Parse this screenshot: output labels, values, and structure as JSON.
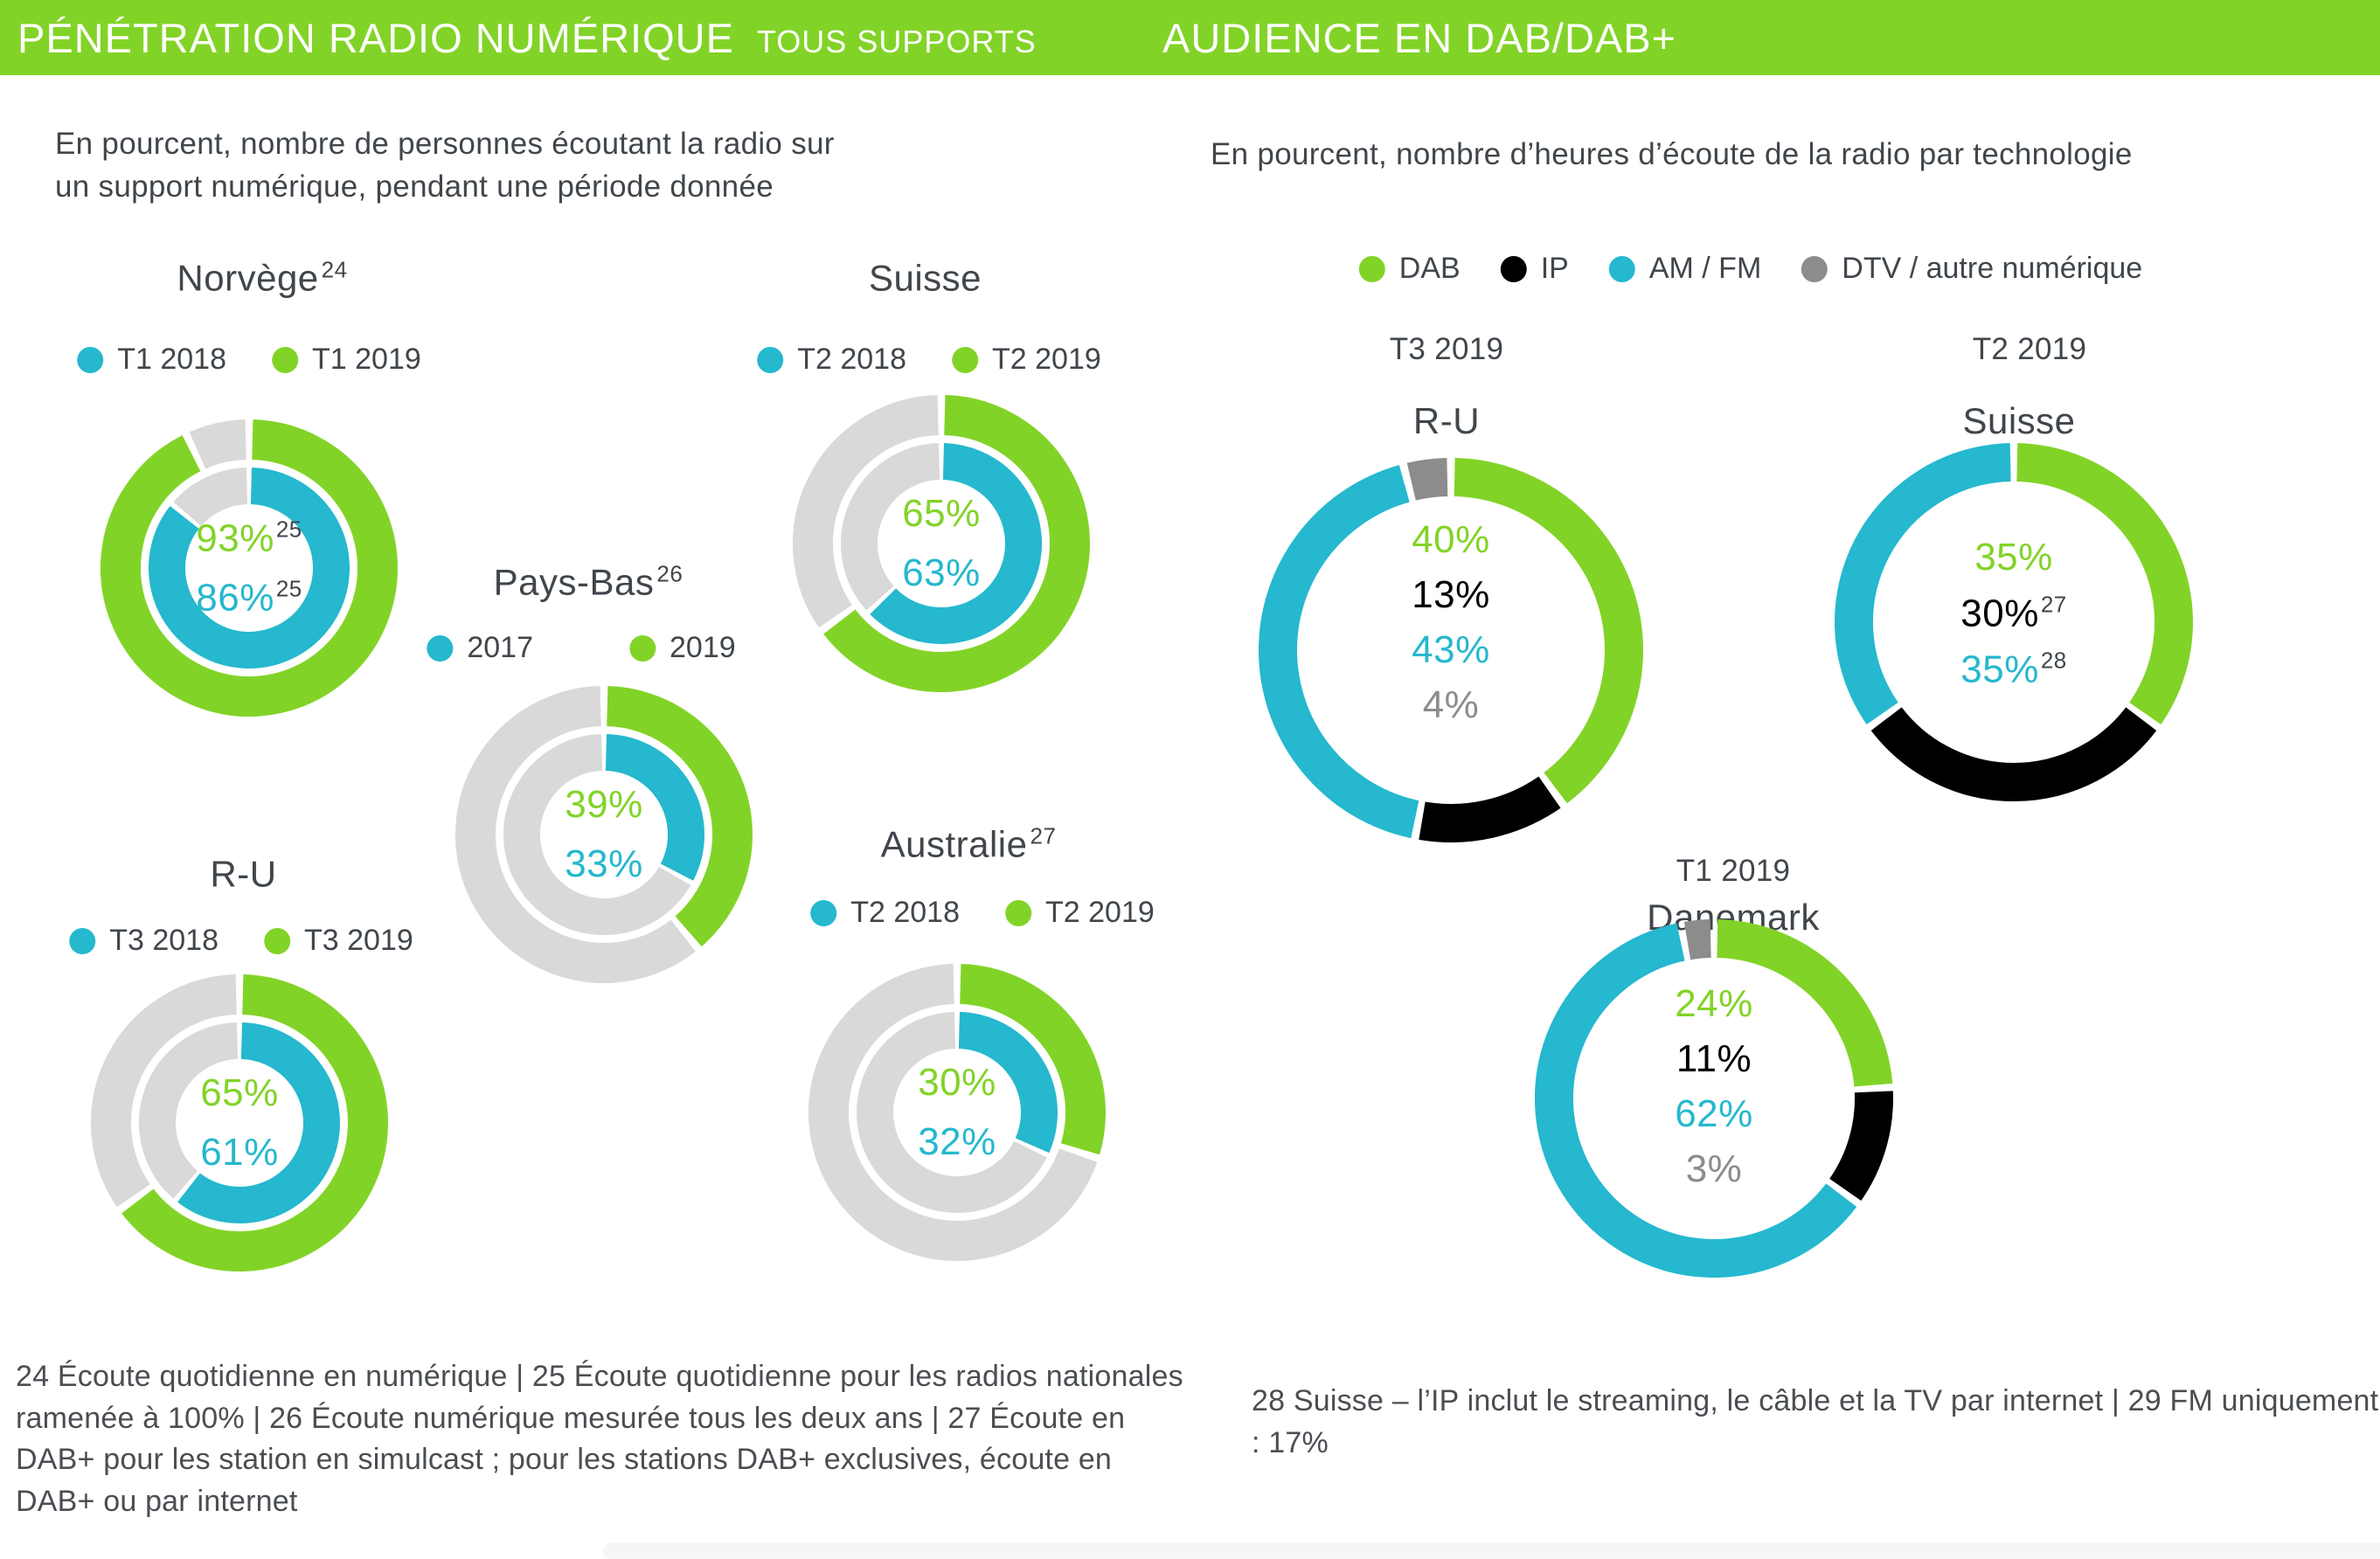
{
  "header": {
    "left_title": "PÉNÉTRATION RADIO NUMÉRIQUE",
    "left_title_suffix": "TOUS SUPPORTS",
    "right_title": "AUDIENCE EN DAB/DAB+"
  },
  "left_panel": {
    "description": "En pourcent, nombre de personnes écoutant la radio sur un support numérique, pendant une période donnée",
    "description_line1": "En pourcent, nombre de personnes écoutant la radio sur",
    "description_line2": "un support numérique, pendant une période donnée",
    "footnote": "24 Écoute quotidienne en numérique | 25 Écoute quotidienne pour les radios nationales ramenée à 100% | 26 Écoute numérique mesurée tous les deux ans | 27 Écoute en DAB+ pour les station en simulcast ; pour les stations DAB+ exclusives, écoute en DAB+ ou par internet"
  },
  "right_panel": {
    "description": "En pourcent, nombre d’heures d’écoute de la radio par technologie",
    "legend": [
      {
        "label": "DAB",
        "color": "green"
      },
      {
        "label": "IP",
        "color": "black"
      },
      {
        "label": "AM / FM",
        "color": "teal"
      },
      {
        "label": "DTV / autre numérique",
        "color": "gray"
      }
    ],
    "footnote": "28 Suisse – l’IP inclut le streaming, le câble et la TV par internet | 29 FM uniquement : 17%"
  },
  "colors": {
    "green": "#82D327",
    "teal": "#25B8CE",
    "black": "#000000",
    "gray": "#8C8C8C",
    "lightgray": "#D9D9D9",
    "dark_text": "#40464B"
  },
  "chart_data": [
    {
      "id": "norvege",
      "type": "donut",
      "unit": "%",
      "panel": "left",
      "title": "Norvège",
      "title_sup": "24",
      "legend": [
        {
          "label": "T1 2018",
          "color": "teal"
        },
        {
          "label": "T1 2019",
          "color": "green"
        }
      ],
      "rings": [
        {
          "ring": "outer",
          "period": "T1 2019",
          "value": 93,
          "color": "green",
          "remainder_color": "lightgray"
        },
        {
          "ring": "inner",
          "period": "T1 2018",
          "value": 86,
          "color": "teal",
          "remainder_color": "lightgray"
        }
      ],
      "center_labels": [
        {
          "text": "93%",
          "sup": "25",
          "color": "green"
        },
        {
          "text": "86%",
          "sup": "25",
          "color": "teal"
        }
      ]
    },
    {
      "id": "suisse_gauche",
      "type": "donut",
      "unit": "%",
      "panel": "left",
      "title": "Suisse",
      "legend": [
        {
          "label": "T2 2018",
          "color": "teal"
        },
        {
          "label": "T2 2019",
          "color": "green"
        }
      ],
      "rings": [
        {
          "ring": "outer",
          "period": "T2 2019",
          "value": 65,
          "color": "green",
          "remainder_color": "lightgray"
        },
        {
          "ring": "inner",
          "period": "T2 2018",
          "value": 63,
          "color": "teal",
          "remainder_color": "lightgray"
        }
      ],
      "center_labels": [
        {
          "text": "65%",
          "color": "green"
        },
        {
          "text": "63%",
          "color": "teal"
        }
      ]
    },
    {
      "id": "pays_bas",
      "type": "donut",
      "unit": "%",
      "panel": "left",
      "title": "Pays-Bas",
      "title_sup": "26",
      "legend": [
        {
          "label": "2017",
          "color": "teal"
        },
        {
          "label": "2019",
          "color": "green"
        }
      ],
      "rings": [
        {
          "ring": "outer",
          "period": "2019",
          "value": 39,
          "color": "green",
          "remainder_color": "lightgray"
        },
        {
          "ring": "inner",
          "period": "2017",
          "value": 33,
          "color": "teal",
          "remainder_color": "lightgray"
        }
      ],
      "center_labels": [
        {
          "text": "39%",
          "color": "green"
        },
        {
          "text": "33%",
          "color": "teal"
        }
      ]
    },
    {
      "id": "ru_gauche",
      "type": "donut",
      "unit": "%",
      "panel": "left",
      "title": "R-U",
      "legend": [
        {
          "label": "T3 2018",
          "color": "teal"
        },
        {
          "label": "T3 2019",
          "color": "green"
        }
      ],
      "rings": [
        {
          "ring": "outer",
          "period": "T3 2019",
          "value": 65,
          "color": "green",
          "remainder_color": "lightgray"
        },
        {
          "ring": "inner",
          "period": "T3 2018",
          "value": 61,
          "color": "teal",
          "remainder_color": "lightgray"
        }
      ],
      "center_labels": [
        {
          "text": "65%",
          "color": "green"
        },
        {
          "text": "61%",
          "color": "teal"
        }
      ]
    },
    {
      "id": "australie",
      "type": "donut",
      "unit": "%",
      "panel": "left",
      "title": "Australie",
      "title_sup": "27",
      "legend": [
        {
          "label": "T2 2018",
          "color": "teal"
        },
        {
          "label": "T2 2019",
          "color": "green"
        }
      ],
      "rings": [
        {
          "ring": "outer",
          "period": "T2 2019",
          "value": 30,
          "color": "green",
          "remainder_color": "lightgray"
        },
        {
          "ring": "inner",
          "period": "T2 2018",
          "value": 32,
          "color": "teal",
          "remainder_color": "lightgray"
        }
      ],
      "center_labels": [
        {
          "text": "30%",
          "color": "green"
        },
        {
          "text": "32%",
          "color": "teal"
        }
      ]
    },
    {
      "id": "ru_droite",
      "type": "donut",
      "unit": "%",
      "panel": "right",
      "period_label": "T3 2019",
      "title": "R-U",
      "segments": [
        {
          "label": "DAB",
          "value": 40,
          "color": "green"
        },
        {
          "label": "IP",
          "value": 13,
          "color": "black"
        },
        {
          "label": "AM / FM",
          "value": 43,
          "color": "teal"
        },
        {
          "label": "DTV / autre numérique",
          "value": 4,
          "color": "gray"
        }
      ],
      "center_labels": [
        {
          "text": "40%",
          "color": "green"
        },
        {
          "text": "13%",
          "color": "black"
        },
        {
          "text": "43%",
          "color": "teal"
        },
        {
          "text": "4%",
          "color": "gray"
        }
      ]
    },
    {
      "id": "suisse_droite",
      "type": "donut",
      "unit": "%",
      "panel": "right",
      "period_label": "T2 2019",
      "title": "Suisse",
      "segments": [
        {
          "label": "DAB",
          "value": 35,
          "color": "green"
        },
        {
          "label": "IP",
          "value": 30,
          "color": "black"
        },
        {
          "label": "AM / FM",
          "value": 35,
          "color": "teal"
        }
      ],
      "center_labels": [
        {
          "text": "35%",
          "color": "green"
        },
        {
          "text": "30%",
          "sup": "27",
          "color": "black"
        },
        {
          "text": "35%",
          "sup": "28",
          "color": "teal"
        }
      ]
    },
    {
      "id": "danemark",
      "type": "donut",
      "unit": "%",
      "panel": "right",
      "period_label": "T1 2019",
      "title": "Danemark",
      "segments": [
        {
          "label": "DAB",
          "value": 24,
          "color": "green"
        },
        {
          "label": "IP",
          "value": 11,
          "color": "black"
        },
        {
          "label": "AM / FM",
          "value": 62,
          "color": "teal"
        },
        {
          "label": "DTV / autre numérique",
          "value": 3,
          "color": "gray"
        }
      ],
      "center_labels": [
        {
          "text": "24%",
          "color": "green"
        },
        {
          "text": "11%",
          "color": "black"
        },
        {
          "text": "62%",
          "color": "teal"
        },
        {
          "text": "3%",
          "color": "gray"
        }
      ]
    }
  ]
}
